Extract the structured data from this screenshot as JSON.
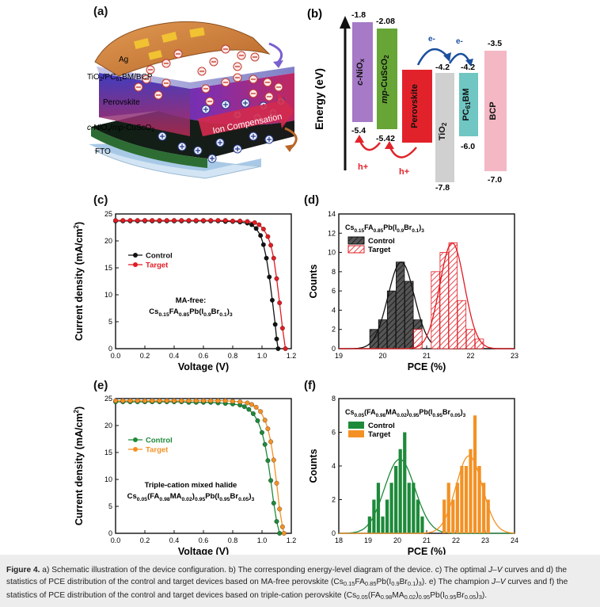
{
  "panel_labels": {
    "a": "(a)",
    "b": "(b)",
    "c": "(c)",
    "d": "(d)",
    "e": "(e)",
    "f": "(f)"
  },
  "panel_a": {
    "layers": {
      "ag": "Ag",
      "etl": "TiO2/PC61BM/BCP",
      "perovskite": "Perovskite",
      "htl": "c-NiOx/mp-CuScO2",
      "fto": "FTO"
    },
    "ion_compensation": "Ion Compensation",
    "colors": {
      "ag": "#d7873d",
      "perovskite": "#6a2fb7",
      "htl": "#1c1c1c",
      "fto": "#bcd7ee",
      "ion_arrow": "#d12a4e"
    }
  },
  "panel_b": {
    "y_axis_label": "Energy (eV)",
    "materials": [
      {
        "name": "c-NiOx",
        "top": "-1.8",
        "bottom": "-5.4",
        "color": "#a67ac6"
      },
      {
        "name": "mp-CuScO2",
        "top": "-2.08",
        "bottom": "-5.42",
        "color": "#66a536"
      },
      {
        "name": "Perovskite",
        "top": "",
        "bottom": "",
        "color": "#e2222a"
      },
      {
        "name": "TiO2",
        "top": "-4.2",
        "bottom": "-7.8",
        "color": "#d0d0d0"
      },
      {
        "name": "PC61BM",
        "top": "-4.2",
        "bottom": "-6.0",
        "color": "#6fc6c3"
      },
      {
        "name": "BCP",
        "top": "-3.5",
        "bottom": "-7.0",
        "color": "#f4b8c4"
      }
    ],
    "electron_label": "e-",
    "hole_label": "h+"
  },
  "chart_data": [
    {
      "id": "c",
      "type": "line",
      "xlabel": "Voltage (V)",
      "ylabel": "Current density (mA/cm2)",
      "xlim": [
        0.0,
        1.2
      ],
      "ylim": [
        0,
        25
      ],
      "xticks": [
        "0.0",
        "0.2",
        "0.4",
        "0.6",
        "0.8",
        "1.0",
        "1.2"
      ],
      "yticks": [
        "0",
        "5",
        "10",
        "15",
        "20",
        "25"
      ],
      "annotation": "MA-free:",
      "annotation_formula": "Cs0.15FA0.85Pb(I0.9Br0.1)3",
      "legend": "upper-left",
      "series": [
        {
          "name": "Control",
          "color": "#111111",
          "x": [
            0.0,
            0.05,
            0.1,
            0.15,
            0.2,
            0.25,
            0.3,
            0.35,
            0.4,
            0.45,
            0.5,
            0.55,
            0.6,
            0.65,
            0.7,
            0.75,
            0.8,
            0.85,
            0.9,
            0.93,
            0.96,
            0.99,
            1.01,
            1.03,
            1.05,
            1.07,
            1.09,
            1.1,
            1.11
          ],
          "y": [
            23.7,
            23.7,
            23.7,
            23.7,
            23.7,
            23.7,
            23.7,
            23.7,
            23.7,
            23.7,
            23.7,
            23.7,
            23.7,
            23.7,
            23.7,
            23.6,
            23.6,
            23.5,
            23.3,
            23.0,
            22.3,
            21.0,
            19.3,
            16.8,
            13.3,
            9.0,
            4.5,
            1.8,
            0.0
          ]
        },
        {
          "name": "Target",
          "color": "#e11b22",
          "x": [
            0.0,
            0.05,
            0.1,
            0.15,
            0.2,
            0.25,
            0.3,
            0.35,
            0.4,
            0.45,
            0.5,
            0.55,
            0.6,
            0.65,
            0.7,
            0.75,
            0.8,
            0.85,
            0.9,
            0.95,
            0.98,
            1.01,
            1.04,
            1.06,
            1.08,
            1.1,
            1.12,
            1.14,
            1.16
          ],
          "y": [
            23.8,
            23.8,
            23.8,
            23.8,
            23.8,
            23.8,
            23.8,
            23.8,
            23.8,
            23.8,
            23.8,
            23.8,
            23.8,
            23.8,
            23.8,
            23.8,
            23.7,
            23.7,
            23.6,
            23.4,
            23.0,
            22.2,
            20.8,
            19.2,
            16.8,
            13.0,
            8.5,
            3.8,
            0.0
          ]
        }
      ]
    },
    {
      "id": "d",
      "type": "bar",
      "title": "Cs0.15FA0.85Pb(I0.9Br0.1)3",
      "xlabel": "PCE (%)",
      "ylabel": "Counts",
      "xlim": [
        19,
        23
      ],
      "ylim": [
        0,
        14
      ],
      "xticks": [
        "19",
        "20",
        "21",
        "22",
        "23"
      ],
      "yticks": [
        "0",
        "2",
        "4",
        "6",
        "8",
        "10",
        "12",
        "14"
      ],
      "bin_width": 0.2,
      "legend": "upper-left",
      "series": [
        {
          "name": "Control",
          "color": "#111111",
          "hatch": "black",
          "bins": [
            19.8,
            20.0,
            20.2,
            20.4,
            20.6,
            20.8
          ],
          "counts": [
            2,
            3,
            6,
            9,
            7,
            3
          ],
          "fit_mean": 20.42,
          "fit_sigma": 0.3,
          "fit_peak": 9.0
        },
        {
          "name": "Target",
          "color": "#e11b22",
          "hatch": "red",
          "bins": [
            20.8,
            21.2,
            21.4,
            21.6,
            21.8,
            22.0,
            22.2
          ],
          "counts": [
            2,
            8,
            10,
            11,
            5,
            2,
            1
          ],
          "fit_mean": 21.58,
          "fit_sigma": 0.28,
          "fit_peak": 11.0
        }
      ]
    },
    {
      "id": "e",
      "type": "line",
      "xlabel": "Voltage (V)",
      "ylabel": "Current density (mA/cm2)",
      "xlim": [
        0.0,
        1.2
      ],
      "ylim": [
        0,
        25
      ],
      "xticks": [
        "0.0",
        "0.2",
        "0.4",
        "0.6",
        "0.8",
        "1.0",
        "1.2"
      ],
      "yticks": [
        "0",
        "5",
        "10",
        "15",
        "20",
        "25"
      ],
      "annotation": "Triple-cation mixed halide",
      "annotation_formula": "Cs0.05(FA0.98MA0.02)0.95Pb(I0.95Br0.05)3",
      "legend": "upper-left",
      "series": [
        {
          "name": "Control",
          "color": "#1d8a3a",
          "x": [
            0.0,
            0.05,
            0.1,
            0.15,
            0.2,
            0.25,
            0.3,
            0.35,
            0.4,
            0.45,
            0.5,
            0.55,
            0.6,
            0.65,
            0.7,
            0.75,
            0.8,
            0.85,
            0.88,
            0.91,
            0.94,
            0.97,
            1.0,
            1.02,
            1.04,
            1.06,
            1.08,
            1.1,
            1.12
          ],
          "y": [
            24.4,
            24.4,
            24.4,
            24.4,
            24.4,
            24.4,
            24.4,
            24.4,
            24.4,
            24.4,
            24.3,
            24.3,
            24.3,
            24.3,
            24.2,
            24.1,
            24.0,
            23.8,
            23.5,
            23.0,
            22.2,
            20.9,
            18.7,
            16.5,
            13.5,
            9.8,
            5.6,
            2.2,
            0.0
          ]
        },
        {
          "name": "Target",
          "color": "#f39124",
          "x": [
            0.0,
            0.05,
            0.1,
            0.15,
            0.2,
            0.25,
            0.3,
            0.35,
            0.4,
            0.45,
            0.5,
            0.55,
            0.6,
            0.65,
            0.7,
            0.75,
            0.8,
            0.85,
            0.9,
            0.93,
            0.96,
            0.99,
            1.02,
            1.04,
            1.06,
            1.08,
            1.1,
            1.12,
            1.14,
            1.15
          ],
          "y": [
            24.6,
            24.6,
            24.6,
            24.6,
            24.6,
            24.6,
            24.6,
            24.6,
            24.6,
            24.6,
            24.6,
            24.6,
            24.6,
            24.6,
            24.6,
            24.6,
            24.5,
            24.4,
            24.2,
            23.9,
            23.4,
            22.6,
            21.0,
            19.4,
            17.0,
            13.6,
            9.3,
            4.5,
            1.2,
            0.0
          ]
        }
      ]
    },
    {
      "id": "f",
      "type": "bar",
      "title": "Cs0.05(FA0.98MA0.02)0.95Pb(I0.95Br0.05)3",
      "xlabel": "PCE (%)",
      "ylabel": "Counts",
      "xlim": [
        18,
        24
      ],
      "ylim": [
        0,
        8
      ],
      "xticks": [
        "18",
        "19",
        "20",
        "21",
        "22",
        "23",
        "24"
      ],
      "yticks": [
        "0",
        "2",
        "4",
        "6",
        "8"
      ],
      "bin_width": 0.12,
      "legend": "upper-left",
      "series": [
        {
          "name": "Control",
          "color": "#1d8a3a",
          "bins": [
            19.05,
            19.2,
            19.35,
            19.5,
            19.65,
            19.8,
            19.95,
            20.1,
            20.25,
            20.4,
            20.55,
            20.7,
            20.85
          ],
          "counts": [
            1,
            2,
            3,
            1,
            2,
            3,
            4,
            5,
            6,
            3,
            3,
            2,
            1
          ],
          "fit_mean": 20.08,
          "fit_sigma": 0.52,
          "fit_peak": 4.4
        },
        {
          "name": "Target",
          "color": "#f39124",
          "bins": [
            21.6,
            21.75,
            21.9,
            22.05,
            22.2,
            22.35,
            22.5,
            22.65,
            22.8,
            22.95,
            23.1
          ],
          "counts": [
            2,
            3,
            2,
            3,
            4,
            4,
            5,
            7,
            4,
            3,
            2
          ],
          "fit_mean": 22.45,
          "fit_sigma": 0.45,
          "fit_peak": 4.6
        }
      ]
    }
  ],
  "caption": {
    "label": "Figure 4.",
    "text_1": " a) Schematic illustration of the device configuration. b) The corresponding energy-level diagram of the device. c) The optimal ",
    "jv": "J–V",
    "text_2": " curves and d) the statistics of PCE distribution of the control and target devices based on MA-free perovskite (Cs",
    "f_a1": "0.15",
    "f_a2": "FA",
    "f_a3": "0.85",
    "f_a4": "Pb(I",
    "f_a5": "0.9",
    "f_a6": "Br",
    "f_a7": "0.1",
    "f_a8": ")",
    "f_a9": "3",
    "text_3": "). e) The champion ",
    "text_4": " curves and f) the statistics of PCE distribution of the control and target devices based on triple-cation perovskite (Cs",
    "f_b1": "0.05",
    "f_b2": "(FA",
    "f_b3": "0.98",
    "f_b4": "MA",
    "f_b5": "0.02",
    "f_b6": ")",
    "f_b7": "0.95",
    "f_b8": "Pb(I",
    "f_b9": "0.95",
    "f_b10": "Br",
    "f_b11": "0.05",
    "f_b12": ")",
    "f_b13": "3",
    "text_5": ")."
  }
}
